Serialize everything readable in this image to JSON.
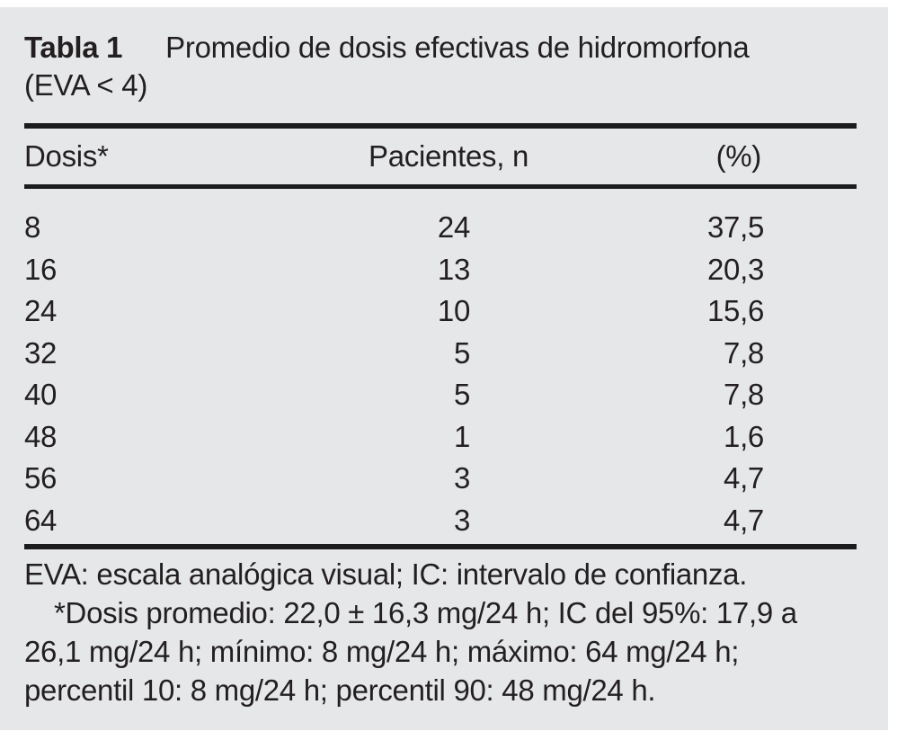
{
  "colors": {
    "page_background": "#ffffff",
    "panel_background": "#e6e7e9",
    "text": "#231f20",
    "rule": "#1c1c1e"
  },
  "table": {
    "label": "Tabla 1",
    "title_line1": "Promedio de dosis efectivas de hidromorfona",
    "title_line2": "(EVA < 4)",
    "columns": {
      "dose": "Dosis*",
      "patients": "Pacientes, n",
      "percent": "(%)"
    },
    "rows": [
      {
        "dose": "8",
        "patients": "24",
        "percent": "37,5"
      },
      {
        "dose": "16",
        "patients": "13",
        "percent": "20,3"
      },
      {
        "dose": "24",
        "patients": "10",
        "percent": "15,6"
      },
      {
        "dose": "32",
        "patients": "5",
        "percent": "7,8"
      },
      {
        "dose": "40",
        "patients": "5",
        "percent": "7,8"
      },
      {
        "dose": "48",
        "patients": "1",
        "percent": "1,6"
      },
      {
        "dose": "56",
        "patients": "3",
        "percent": "4,7"
      },
      {
        "dose": "64",
        "patients": "3",
        "percent": "4,7"
      }
    ],
    "footnote_lines": [
      "EVA: escala analógica visual; IC: intervalo de confianza.",
      "*Dosis promedio: 22,0 ± 16,3 mg/24 h; IC del 95%: 17,9 a",
      "26,1 mg/24 h; mínimo: 8 mg/24 h; máximo: 64 mg/24 h;",
      "percentil 10: 8 mg/24 h; percentil 90: 48 mg/24 h."
    ]
  }
}
